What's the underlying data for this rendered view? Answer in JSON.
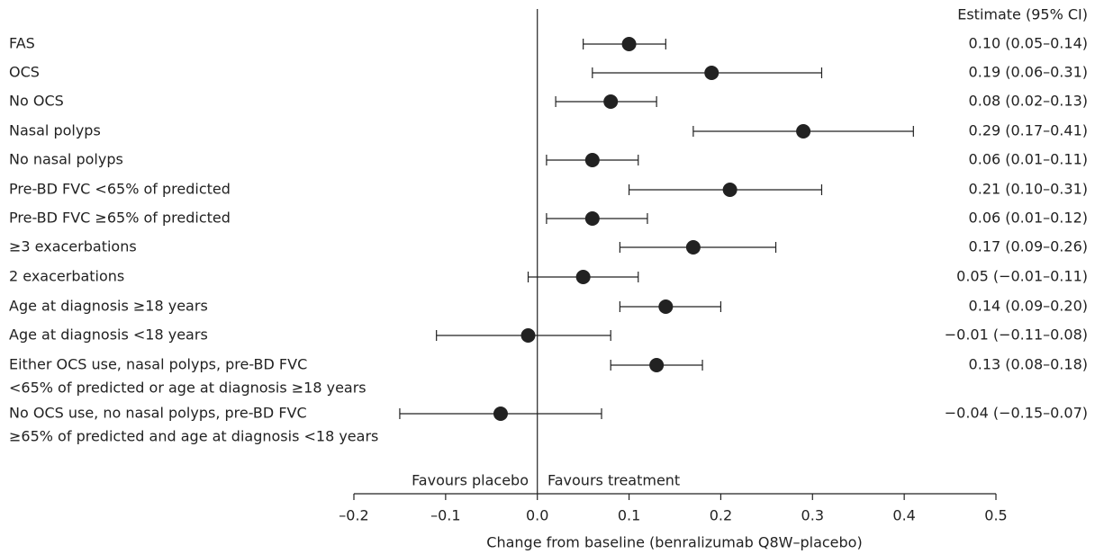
{
  "chart_data": {
    "type": "forest",
    "column_header": "Estimate (95% CI)",
    "categories": [
      "FAS",
      "OCS",
      "No OCS",
      "Nasal polyps",
      "No nasal polyps",
      "Pre-BD FVC <65% of predicted",
      "Pre-BD FVC ≥65% of predicted",
      "≥3 exacerbations",
      "2 exacerbations",
      "Age at diagnosis ≥18 years",
      "Age at diagnosis <18 years",
      [
        "Either OCS use, nasal polyps, pre-BD FVC",
        "<65% of predicted or age at diagnosis ≥18 years"
      ],
      [
        "No OCS use, no nasal polyps, pre-BD FVC",
        "≥65% of predicted and age at diagnosis <18 years"
      ]
    ],
    "values": [
      0.1,
      0.19,
      0.08,
      0.29,
      0.06,
      0.21,
      0.06,
      0.17,
      0.05,
      0.14,
      -0.01,
      0.13,
      -0.04
    ],
    "lower": [
      0.05,
      0.06,
      0.02,
      0.17,
      0.01,
      0.1,
      0.01,
      0.09,
      -0.01,
      0.09,
      -0.11,
      0.08,
      -0.15
    ],
    "upper": [
      0.14,
      0.31,
      0.13,
      0.41,
      0.11,
      0.31,
      0.12,
      0.26,
      0.11,
      0.2,
      0.08,
      0.18,
      0.07
    ],
    "value_labels": [
      "0.10 (0.05–0.14)",
      "0.19 (0.06–0.31)",
      "0.08 (0.02–0.13)",
      "0.29 (0.17–0.41)",
      "0.06 (0.01–0.11)",
      "0.21 (0.10–0.31)",
      "0.06 (0.01–0.12)",
      "0.17 (0.09–0.26)",
      "0.05 (−0.01–0.11)",
      "0.14 (0.09–0.20)",
      "−0.01 (−0.11–0.08)",
      "0.13 (0.08–0.18)",
      "−0.04 (−0.15–0.07)"
    ],
    "color": "#222222",
    "xlim": [
      -0.2,
      0.5
    ],
    "xticks": [
      {
        "value": -0.2,
        "label": "–0.2"
      },
      {
        "value": -0.1,
        "label": "–0.1"
      },
      {
        "value": 0,
        "label": "0.0"
      },
      0.1,
      0.2,
      0.3,
      0.4,
      0.5
    ],
    "xlabel": "Change from baseline (benralizumab Q8W–placebo)",
    "annotations": [
      "Favours placebo",
      "Favours treatment"
    ]
  }
}
